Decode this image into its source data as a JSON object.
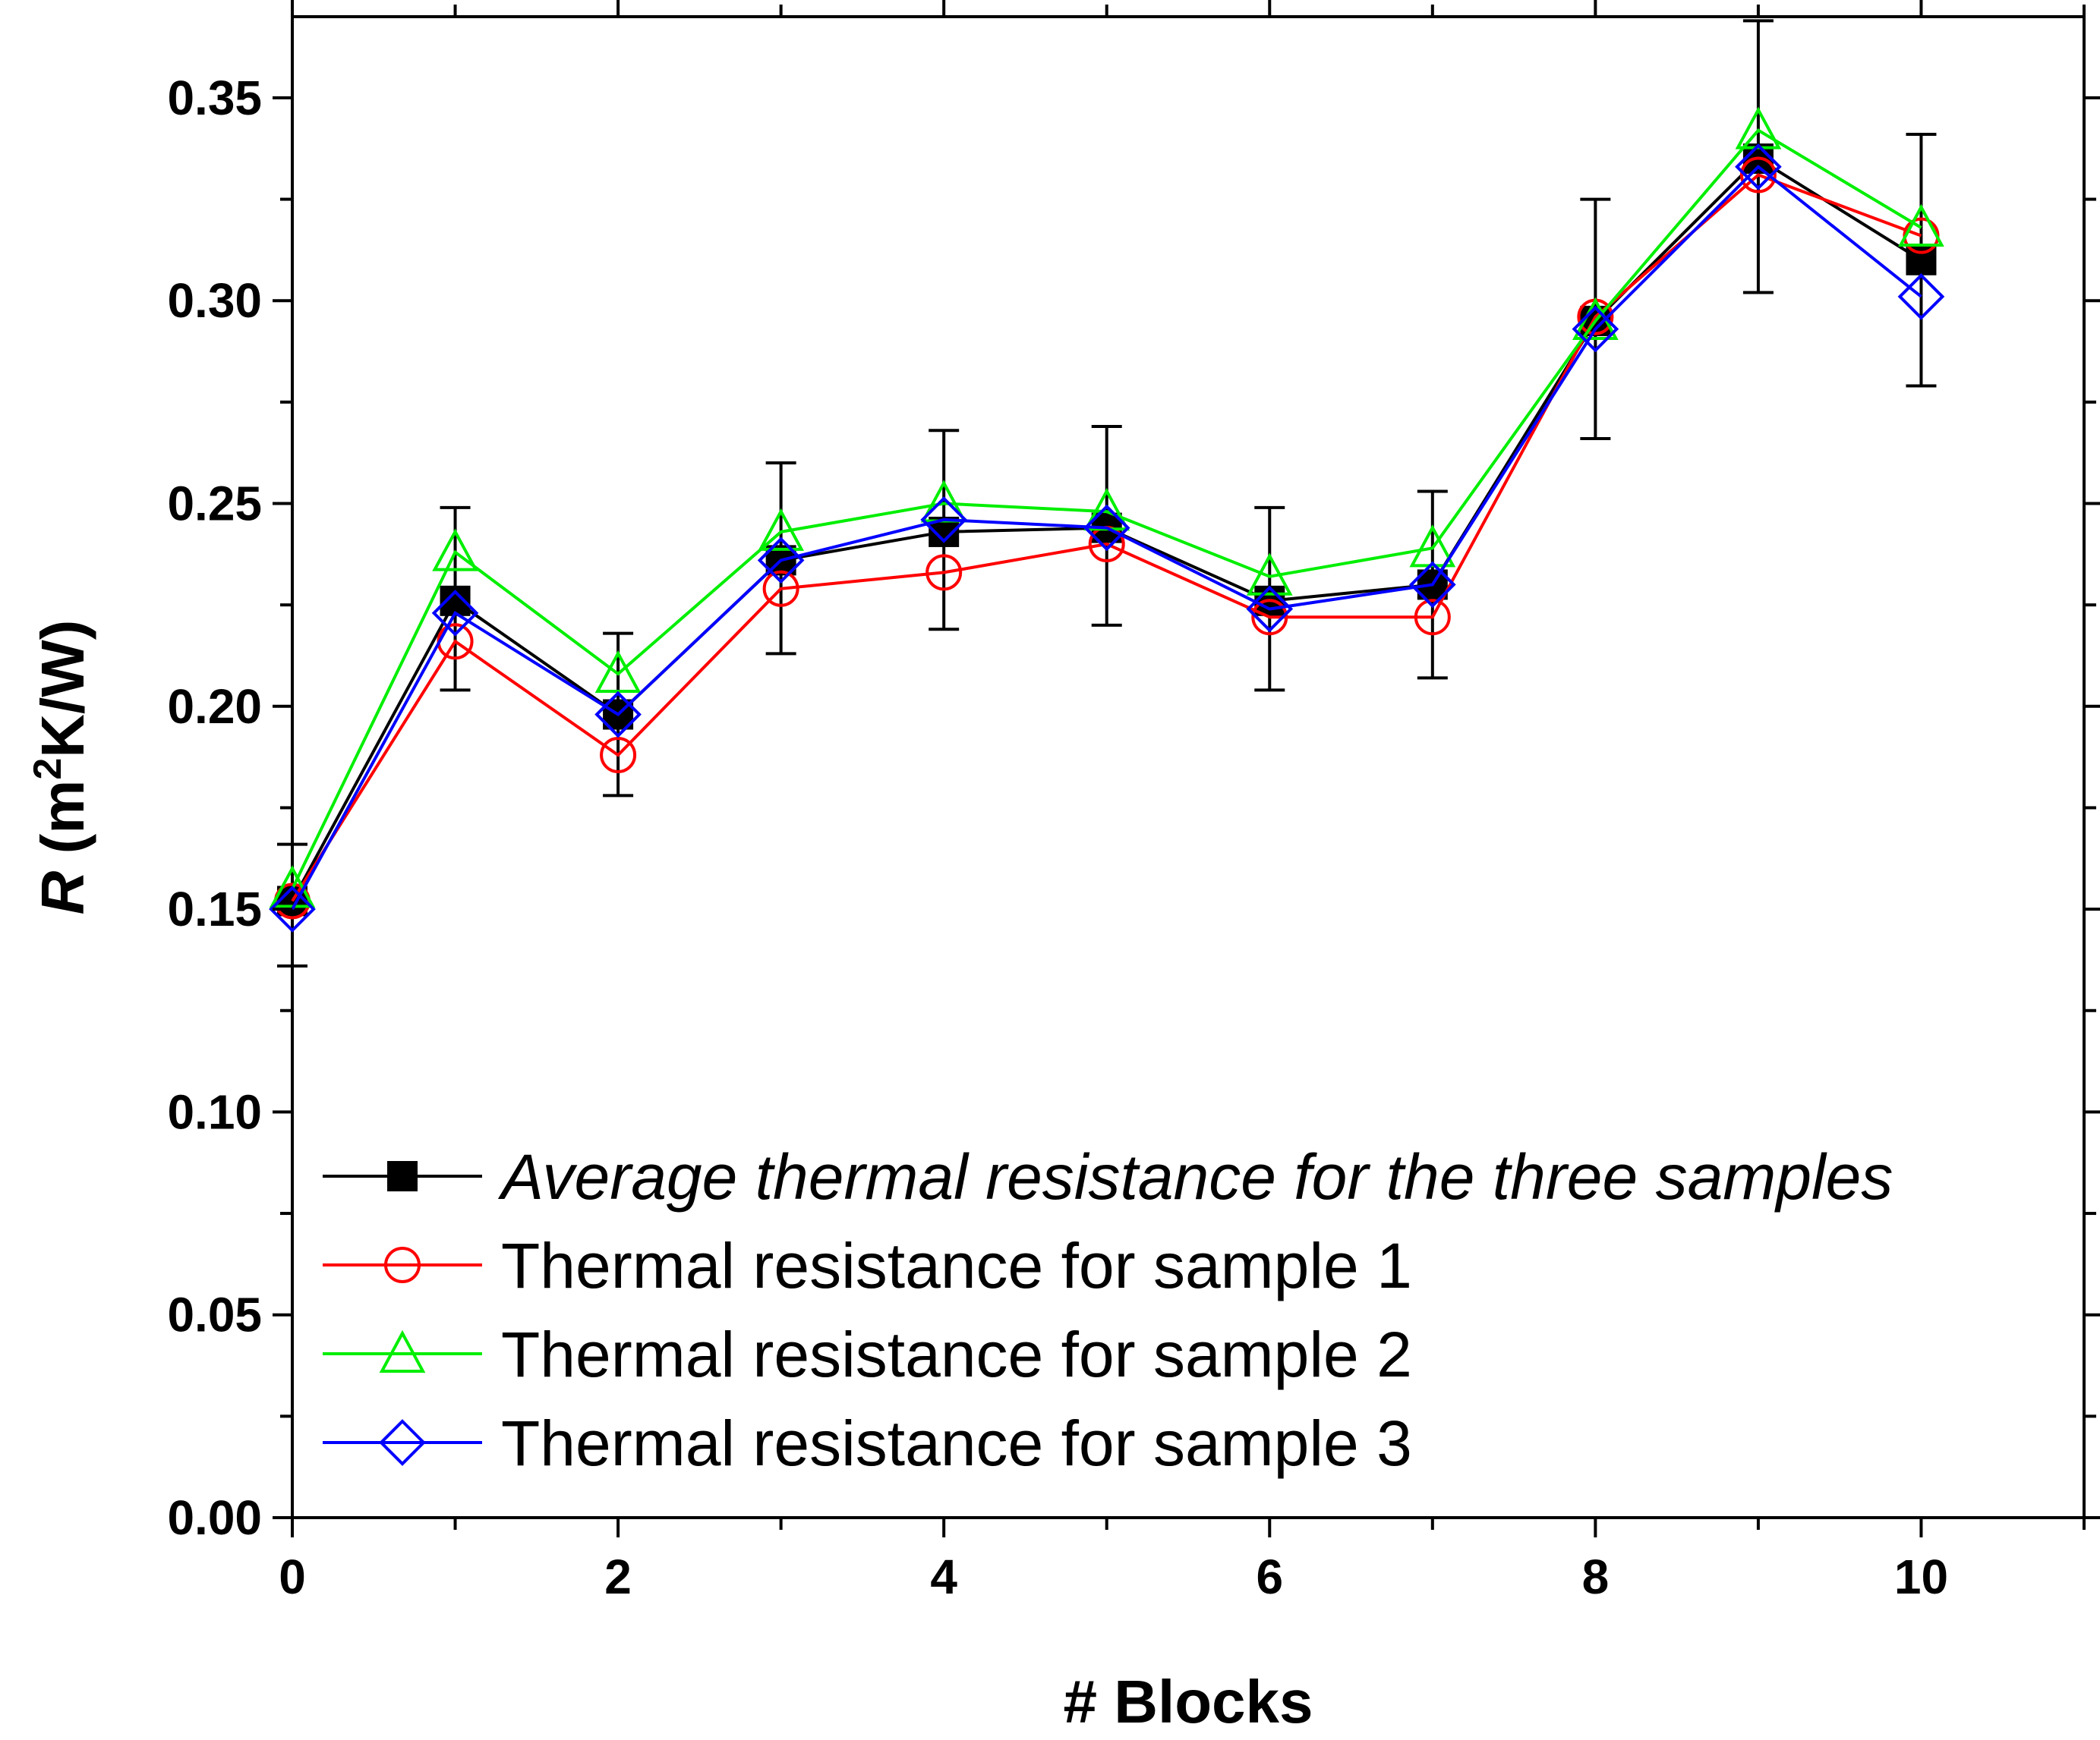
{
  "chart_data": {
    "type": "line",
    "title": "",
    "xlabel": "# Blocks",
    "ylabel": {
      "var": "R",
      "open": " (m",
      "sup": "2",
      "close": "K/W)"
    },
    "xlim": [
      0,
      11
    ],
    "ylim": [
      0,
      0.37
    ],
    "x_ticks": [
      0,
      2,
      4,
      6,
      8,
      10
    ],
    "x_tick_labels": [
      "0",
      "2",
      "4",
      "6",
      "8",
      "10"
    ],
    "y_ticks": [
      0,
      0.05,
      0.1,
      0.15,
      0.2,
      0.25,
      0.3,
      0.35
    ],
    "y_tick_labels": [
      "0.00",
      "0.05",
      "0.10",
      "0.15",
      "0.20",
      "0.25",
      "0.30",
      "0.35"
    ],
    "x": [
      0,
      1,
      2,
      3,
      4,
      5,
      6,
      7,
      8,
      9,
      10
    ],
    "series": [
      {
        "name": "Average thermal resistance for the three samples",
        "color": "#000000",
        "marker": "filled-square",
        "italic": true,
        "values": [
          0.152,
          0.226,
          0.198,
          0.236,
          0.243,
          0.244,
          0.226,
          0.23,
          0.295,
          0.335,
          0.31
        ],
        "error_low": [
          0.136,
          0.204,
          0.178,
          0.213,
          0.219,
          0.22,
          0.204,
          0.207,
          0.266,
          0.302,
          0.279
        ],
        "error_high": [
          0.166,
          0.249,
          0.218,
          0.26,
          0.268,
          0.269,
          0.249,
          0.253,
          0.325,
          0.369,
          0.341
        ]
      },
      {
        "name": "Thermal resistance for sample 1",
        "color": "#ff0000",
        "marker": "open-circle",
        "italic": false,
        "values": [
          0.152,
          0.216,
          0.188,
          0.229,
          0.233,
          0.24,
          0.222,
          0.222,
          0.296,
          0.331,
          0.316
        ]
      },
      {
        "name": "Thermal resistance for sample 2",
        "color": "#00ee00",
        "marker": "open-triangle",
        "italic": false,
        "values": [
          0.155,
          0.238,
          0.208,
          0.243,
          0.25,
          0.248,
          0.232,
          0.239,
          0.295,
          0.342,
          0.318
        ]
      },
      {
        "name": "Thermal resistance for sample 3",
        "color": "#0000ff",
        "marker": "open-diamond",
        "italic": false,
        "values": [
          0.15,
          0.223,
          0.198,
          0.236,
          0.246,
          0.244,
          0.224,
          0.23,
          0.293,
          0.333,
          0.301
        ]
      }
    ],
    "legend_position": "bottom-right"
  }
}
